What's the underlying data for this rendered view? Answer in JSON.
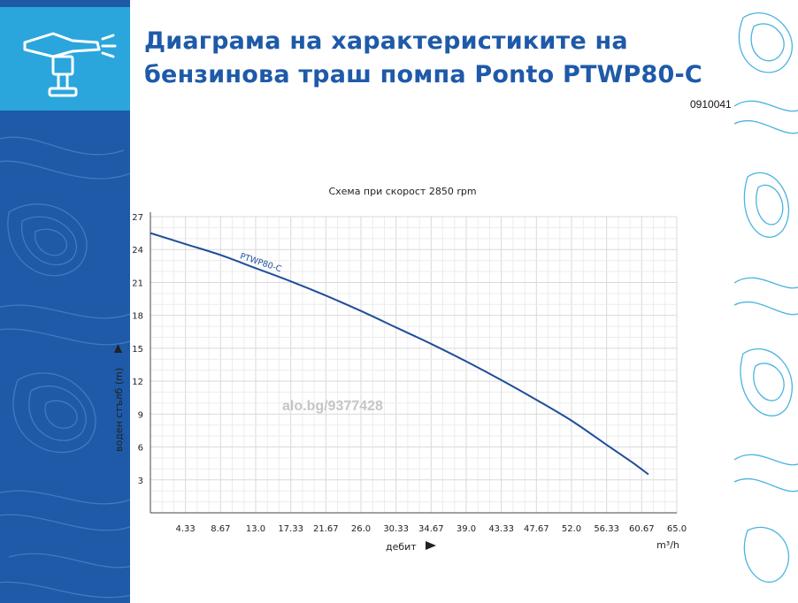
{
  "page": {
    "title_line1": "Диаграма на характеристиките на",
    "title_line2": "бензинова траш помпа Ponto PTWP80-C",
    "product_code": "0910041",
    "watermark": "alo.bg/9377428",
    "colors": {
      "brand_blue": "#1e5aa8",
      "logo_bg": "#2aa6dc",
      "curve": "#1f4e99",
      "grid": "#d9d9d9"
    },
    "logo_icon": "sprinkler-icon"
  },
  "chart_data": {
    "type": "line",
    "title": "Схема при скорост 2850 rpm",
    "xlabel": "дебит",
    "xunit": "m³/h",
    "ylabel": "воден стълб (m)",
    "xlim": [
      0,
      65
    ],
    "ylim": [
      0,
      27
    ],
    "x_ticks": [
      4.33,
      8.67,
      13.0,
      17.33,
      21.67,
      26.0,
      30.33,
      34.67,
      39.0,
      43.33,
      47.67,
      52.0,
      56.33,
      60.67,
      65.0
    ],
    "x_tick_labels": [
      "4.33",
      "8.67",
      "13.0",
      "17.33",
      "21.67",
      "26.0",
      "30.33",
      "34.67",
      "39.0",
      "43.33",
      "47.67",
      "52.0",
      "56.33",
      "60.67",
      "65.0"
    ],
    "y_ticks": [
      3,
      6,
      9,
      12,
      15,
      18,
      21,
      24,
      27
    ],
    "grid": true,
    "series": [
      {
        "name": "PTWP80-C",
        "x": [
          0,
          4.33,
          8.67,
          13.0,
          17.33,
          21.67,
          26.0,
          30.33,
          34.67,
          39.0,
          43.33,
          47.67,
          52.0,
          56.33,
          59.5,
          61.5
        ],
        "y": [
          25.5,
          24.5,
          23.5,
          22.3,
          21.1,
          19.8,
          18.4,
          16.9,
          15.4,
          13.8,
          12.1,
          10.3,
          8.4,
          6.2,
          4.6,
          3.5
        ]
      }
    ]
  }
}
